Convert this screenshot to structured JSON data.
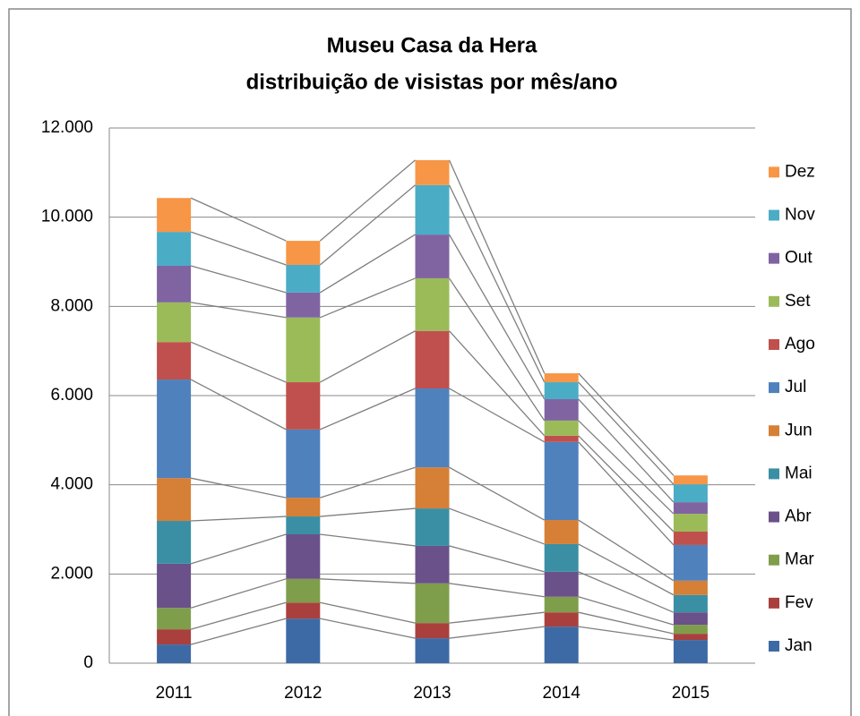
{
  "chart_data": {
    "type": "stacked_bar",
    "title": [
      "Museu Casa da Hera",
      "distribuição de visistas por mês/ano"
    ],
    "categories": [
      "2011",
      "2012",
      "2013",
      "2014",
      "2015"
    ],
    "series": [
      {
        "name": "Jan",
        "color": "#3d6aa5",
        "values": [
          420,
          1000,
          560,
          820,
          520
        ]
      },
      {
        "name": "Fev",
        "color": "#a9403e",
        "values": [
          340,
          360,
          340,
          320,
          140
        ]
      },
      {
        "name": "Mar",
        "color": "#7f9e4b",
        "values": [
          480,
          530,
          890,
          350,
          200
        ]
      },
      {
        "name": "Abr",
        "color": "#6a5189",
        "values": [
          990,
          1000,
          840,
          560,
          280
        ]
      },
      {
        "name": "Mai",
        "color": "#3a8fa5",
        "values": [
          960,
          400,
          840,
          620,
          390
        ]
      },
      {
        "name": "Jun",
        "color": "#d67f36",
        "values": [
          960,
          420,
          920,
          540,
          320
        ]
      },
      {
        "name": "Jul",
        "color": "#4f81bd",
        "values": [
          2210,
          1530,
          1770,
          1750,
          800
        ]
      },
      {
        "name": "Ago",
        "color": "#c0504d",
        "values": [
          840,
          1060,
          1290,
          140,
          300
        ]
      },
      {
        "name": "Set",
        "color": "#9bbb59",
        "values": [
          890,
          1450,
          1180,
          340,
          400
        ]
      },
      {
        "name": "Out",
        "color": "#8064a2",
        "values": [
          820,
          560,
          980,
          480,
          260
        ]
      },
      {
        "name": "Nov",
        "color": "#4bacc6",
        "values": [
          760,
          620,
          1110,
          380,
          400
        ]
      },
      {
        "name": "Dez",
        "color": "#f79646",
        "values": [
          760,
          540,
          560,
          200,
          200
        ]
      }
    ],
    "ylim": [
      0,
      12000
    ],
    "yticks": [
      0,
      {
        "value": 2000,
        "label": "2.000"
      },
      {
        "value": 4000,
        "label": "4.000"
      },
      {
        "value": 6000,
        "label": "6.000"
      },
      {
        "value": 8000,
        "label": "8.000"
      },
      {
        "value": 10000,
        "label": "10.000"
      },
      {
        "value": 12000,
        "label": "12.000"
      }
    ],
    "grid": true,
    "series_lines": true,
    "legend": "right"
  }
}
